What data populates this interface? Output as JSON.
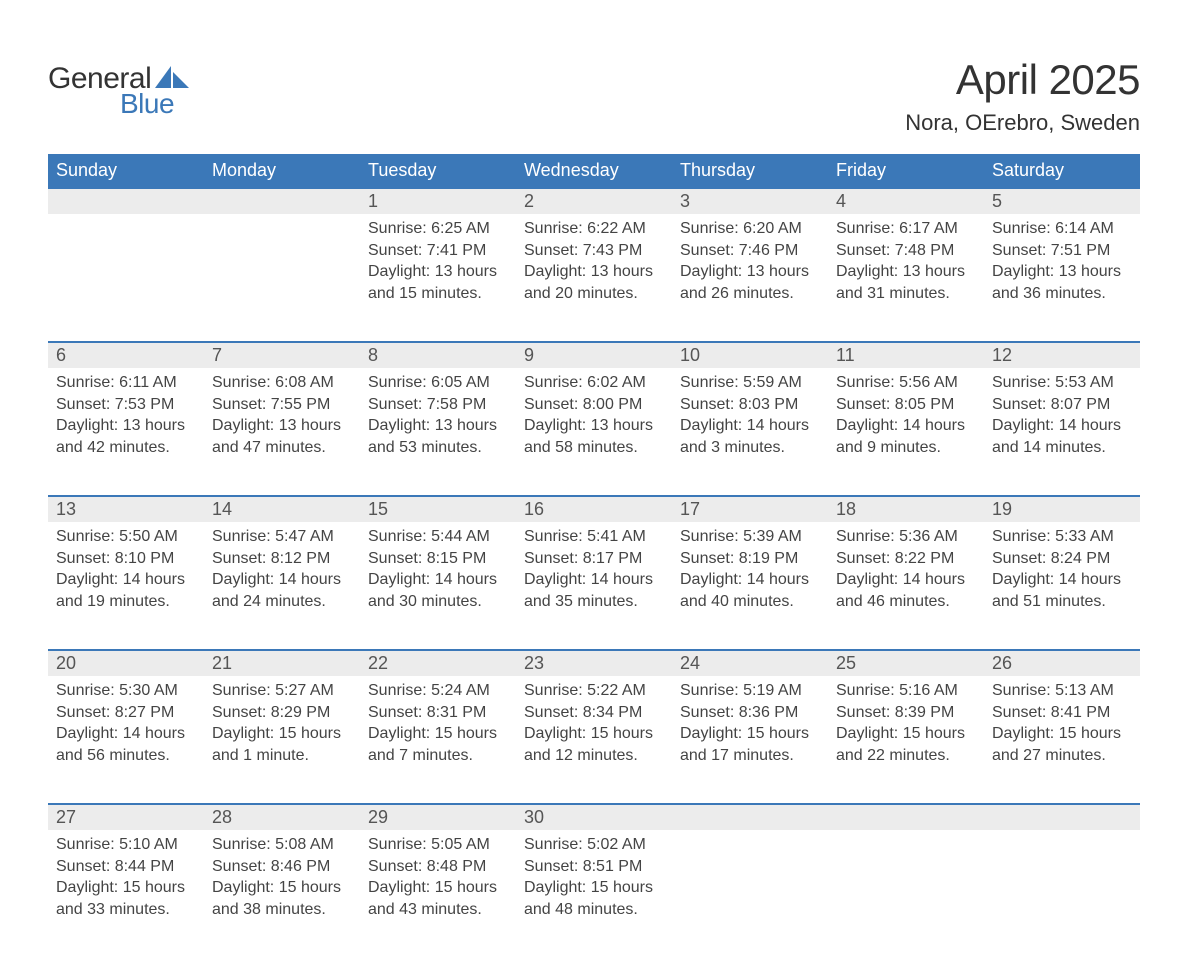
{
  "logo": {
    "word_general": "General",
    "word_blue": "Blue",
    "sail_color": "#3b78b8",
    "general_color": "#333333",
    "blue_color": "#3b78b8"
  },
  "title": {
    "month": "April 2025",
    "location": "Nora, OErebro, Sweden",
    "month_fontsize": 42,
    "location_fontsize": 22
  },
  "colors": {
    "header_bg": "#3b78b8",
    "header_text": "#ffffff",
    "daynum_bg": "#ececec",
    "daynum_border_top": "#3b78b8",
    "body_text": "#444444",
    "daynum_text": "#555555",
    "page_bg": "#ffffff"
  },
  "day_headers": [
    "Sunday",
    "Monday",
    "Tuesday",
    "Wednesday",
    "Thursday",
    "Friday",
    "Saturday"
  ],
  "weeks": [
    {
      "nums": [
        "",
        "",
        "1",
        "2",
        "3",
        "4",
        "5"
      ],
      "sunrise": [
        "",
        "",
        "Sunrise: 6:25 AM",
        "Sunrise: 6:22 AM",
        "Sunrise: 6:20 AM",
        "Sunrise: 6:17 AM",
        "Sunrise: 6:14 AM"
      ],
      "sunset": [
        "",
        "",
        "Sunset: 7:41 PM",
        "Sunset: 7:43 PM",
        "Sunset: 7:46 PM",
        "Sunset: 7:48 PM",
        "Sunset: 7:51 PM"
      ],
      "day1": [
        "",
        "",
        "Daylight: 13 hours",
        "Daylight: 13 hours",
        "Daylight: 13 hours",
        "Daylight: 13 hours",
        "Daylight: 13 hours"
      ],
      "day2": [
        "",
        "",
        "and 15 minutes.",
        "and 20 minutes.",
        "and 26 minutes.",
        "and 31 minutes.",
        "and 36 minutes."
      ]
    },
    {
      "nums": [
        "6",
        "7",
        "8",
        "9",
        "10",
        "11",
        "12"
      ],
      "sunrise": [
        "Sunrise: 6:11 AM",
        "Sunrise: 6:08 AM",
        "Sunrise: 6:05 AM",
        "Sunrise: 6:02 AM",
        "Sunrise: 5:59 AM",
        "Sunrise: 5:56 AM",
        "Sunrise: 5:53 AM"
      ],
      "sunset": [
        "Sunset: 7:53 PM",
        "Sunset: 7:55 PM",
        "Sunset: 7:58 PM",
        "Sunset: 8:00 PM",
        "Sunset: 8:03 PM",
        "Sunset: 8:05 PM",
        "Sunset: 8:07 PM"
      ],
      "day1": [
        "Daylight: 13 hours",
        "Daylight: 13 hours",
        "Daylight: 13 hours",
        "Daylight: 13 hours",
        "Daylight: 14 hours",
        "Daylight: 14 hours",
        "Daylight: 14 hours"
      ],
      "day2": [
        "and 42 minutes.",
        "and 47 minutes.",
        "and 53 minutes.",
        "and 58 minutes.",
        "and 3 minutes.",
        "and 9 minutes.",
        "and 14 minutes."
      ]
    },
    {
      "nums": [
        "13",
        "14",
        "15",
        "16",
        "17",
        "18",
        "19"
      ],
      "sunrise": [
        "Sunrise: 5:50 AM",
        "Sunrise: 5:47 AM",
        "Sunrise: 5:44 AM",
        "Sunrise: 5:41 AM",
        "Sunrise: 5:39 AM",
        "Sunrise: 5:36 AM",
        "Sunrise: 5:33 AM"
      ],
      "sunset": [
        "Sunset: 8:10 PM",
        "Sunset: 8:12 PM",
        "Sunset: 8:15 PM",
        "Sunset: 8:17 PM",
        "Sunset: 8:19 PM",
        "Sunset: 8:22 PM",
        "Sunset: 8:24 PM"
      ],
      "day1": [
        "Daylight: 14 hours",
        "Daylight: 14 hours",
        "Daylight: 14 hours",
        "Daylight: 14 hours",
        "Daylight: 14 hours",
        "Daylight: 14 hours",
        "Daylight: 14 hours"
      ],
      "day2": [
        "and 19 minutes.",
        "and 24 minutes.",
        "and 30 minutes.",
        "and 35 minutes.",
        "and 40 minutes.",
        "and 46 minutes.",
        "and 51 minutes."
      ]
    },
    {
      "nums": [
        "20",
        "21",
        "22",
        "23",
        "24",
        "25",
        "26"
      ],
      "sunrise": [
        "Sunrise: 5:30 AM",
        "Sunrise: 5:27 AM",
        "Sunrise: 5:24 AM",
        "Sunrise: 5:22 AM",
        "Sunrise: 5:19 AM",
        "Sunrise: 5:16 AM",
        "Sunrise: 5:13 AM"
      ],
      "sunset": [
        "Sunset: 8:27 PM",
        "Sunset: 8:29 PM",
        "Sunset: 8:31 PM",
        "Sunset: 8:34 PM",
        "Sunset: 8:36 PM",
        "Sunset: 8:39 PM",
        "Sunset: 8:41 PM"
      ],
      "day1": [
        "Daylight: 14 hours",
        "Daylight: 15 hours",
        "Daylight: 15 hours",
        "Daylight: 15 hours",
        "Daylight: 15 hours",
        "Daylight: 15 hours",
        "Daylight: 15 hours"
      ],
      "day2": [
        "and 56 minutes.",
        "and 1 minute.",
        "and 7 minutes.",
        "and 12 minutes.",
        "and 17 minutes.",
        "and 22 minutes.",
        "and 27 minutes."
      ]
    },
    {
      "nums": [
        "27",
        "28",
        "29",
        "30",
        "",
        "",
        ""
      ],
      "sunrise": [
        "Sunrise: 5:10 AM",
        "Sunrise: 5:08 AM",
        "Sunrise: 5:05 AM",
        "Sunrise: 5:02 AM",
        "",
        "",
        ""
      ],
      "sunset": [
        "Sunset: 8:44 PM",
        "Sunset: 8:46 PM",
        "Sunset: 8:48 PM",
        "Sunset: 8:51 PM",
        "",
        "",
        ""
      ],
      "day1": [
        "Daylight: 15 hours",
        "Daylight: 15 hours",
        "Daylight: 15 hours",
        "Daylight: 15 hours",
        "",
        "",
        ""
      ],
      "day2": [
        "and 33 minutes.",
        "and 38 minutes.",
        "and 43 minutes.",
        "and 48 minutes.",
        "",
        "",
        ""
      ]
    }
  ]
}
